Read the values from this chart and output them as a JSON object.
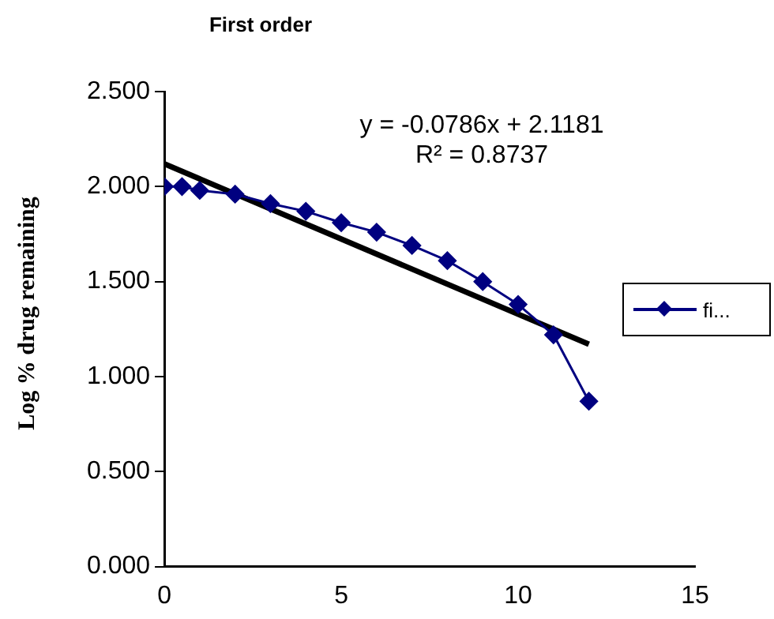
{
  "chart_data": {
    "type": "line",
    "title": "First order",
    "ylabel": "Log % drug remaining",
    "x": [
      0,
      0.5,
      1,
      2,
      3,
      4,
      5,
      6,
      7,
      8,
      9,
      10,
      11,
      12
    ],
    "series": [
      {
        "name": "fi...",
        "color": "#000080",
        "marker": "diamond",
        "values": [
          2.0,
          2.0,
          1.98,
          1.96,
          1.91,
          1.87,
          1.81,
          1.76,
          1.69,
          1.61,
          1.5,
          1.38,
          1.22,
          0.87
        ]
      },
      {
        "type": "line",
        "color": "#000000",
        "marker": "none",
        "x": [
          0,
          12
        ],
        "values": [
          2.12,
          1.17
        ]
      }
    ],
    "annotations": [
      "y = -0.0786x + 2.1181",
      "R² = 0.8737"
    ],
    "xlim": [
      0,
      15
    ],
    "xticks": [
      0,
      5,
      10,
      15
    ],
    "ylim": [
      0,
      2.5
    ],
    "yticks": [
      {
        "value": 0,
        "label": "0.000"
      },
      {
        "value": 0.5,
        "label": "0.500"
      },
      {
        "value": 1,
        "label": "1.000"
      },
      {
        "value": 1.5,
        "label": "1.500"
      },
      {
        "value": 2,
        "label": "2.000"
      },
      {
        "value": 2.5,
        "label": "2.500"
      }
    ],
    "grid": false,
    "legend": "right"
  }
}
